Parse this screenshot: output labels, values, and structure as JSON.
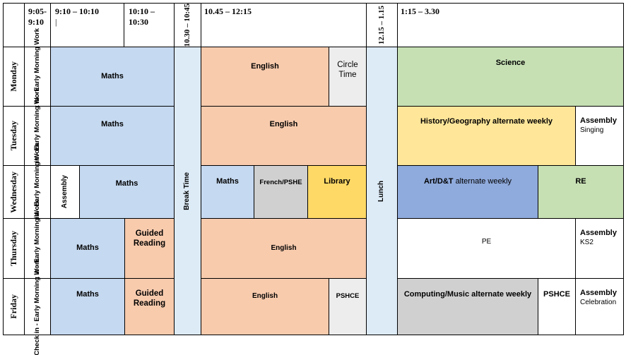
{
  "header": {
    "t1": "9:05-9:10",
    "t2": "9:10 – 10:10",
    "t2_cursor": "|",
    "t3": "10:10 – 10:30",
    "t4": "10.30 – 10:45",
    "t5": "10.45 – 12:15",
    "t6": "12.15 – 1.15",
    "t7": "1:15 – 3.30"
  },
  "days": [
    "Monday",
    "Tuesday",
    "Wednesday",
    "Thursday",
    "Friday"
  ],
  "check_in": "Check in - Early Morning Work",
  "break_time": "Break Time",
  "lunch": "Lunch",
  "monday": {
    "maths": "Maths",
    "english": "English",
    "circle_time": "Circle Time",
    "science": "Science"
  },
  "tuesday": {
    "maths": "Maths",
    "english": "English",
    "hist_geo": "History/Geography alternate weekly",
    "assembly": "Assembly",
    "assembly_sub": "Singing"
  },
  "wednesday": {
    "assembly": "Assembly",
    "maths_am": "Maths",
    "maths": "Maths",
    "french_pshe": "French/PSHE",
    "library": "Library",
    "art_dt": "Art/D&T",
    "art_dt_suffix": "alternate weekly",
    "re": "RE"
  },
  "thursday": {
    "maths": "Maths",
    "guided_reading": "Guided Reading",
    "english": "English",
    "pe": "PE",
    "assembly": "Assembly",
    "assembly_sub": "KS2"
  },
  "friday": {
    "maths": "Maths",
    "guided_reading": "Guided Reading",
    "english": "English",
    "pshce": "PSHCE",
    "computing_music": "Computing/Music alternate weekly",
    "pshce_pm": "PSHCE",
    "assembly": "Assembly",
    "assembly_sub": "Celebration"
  }
}
